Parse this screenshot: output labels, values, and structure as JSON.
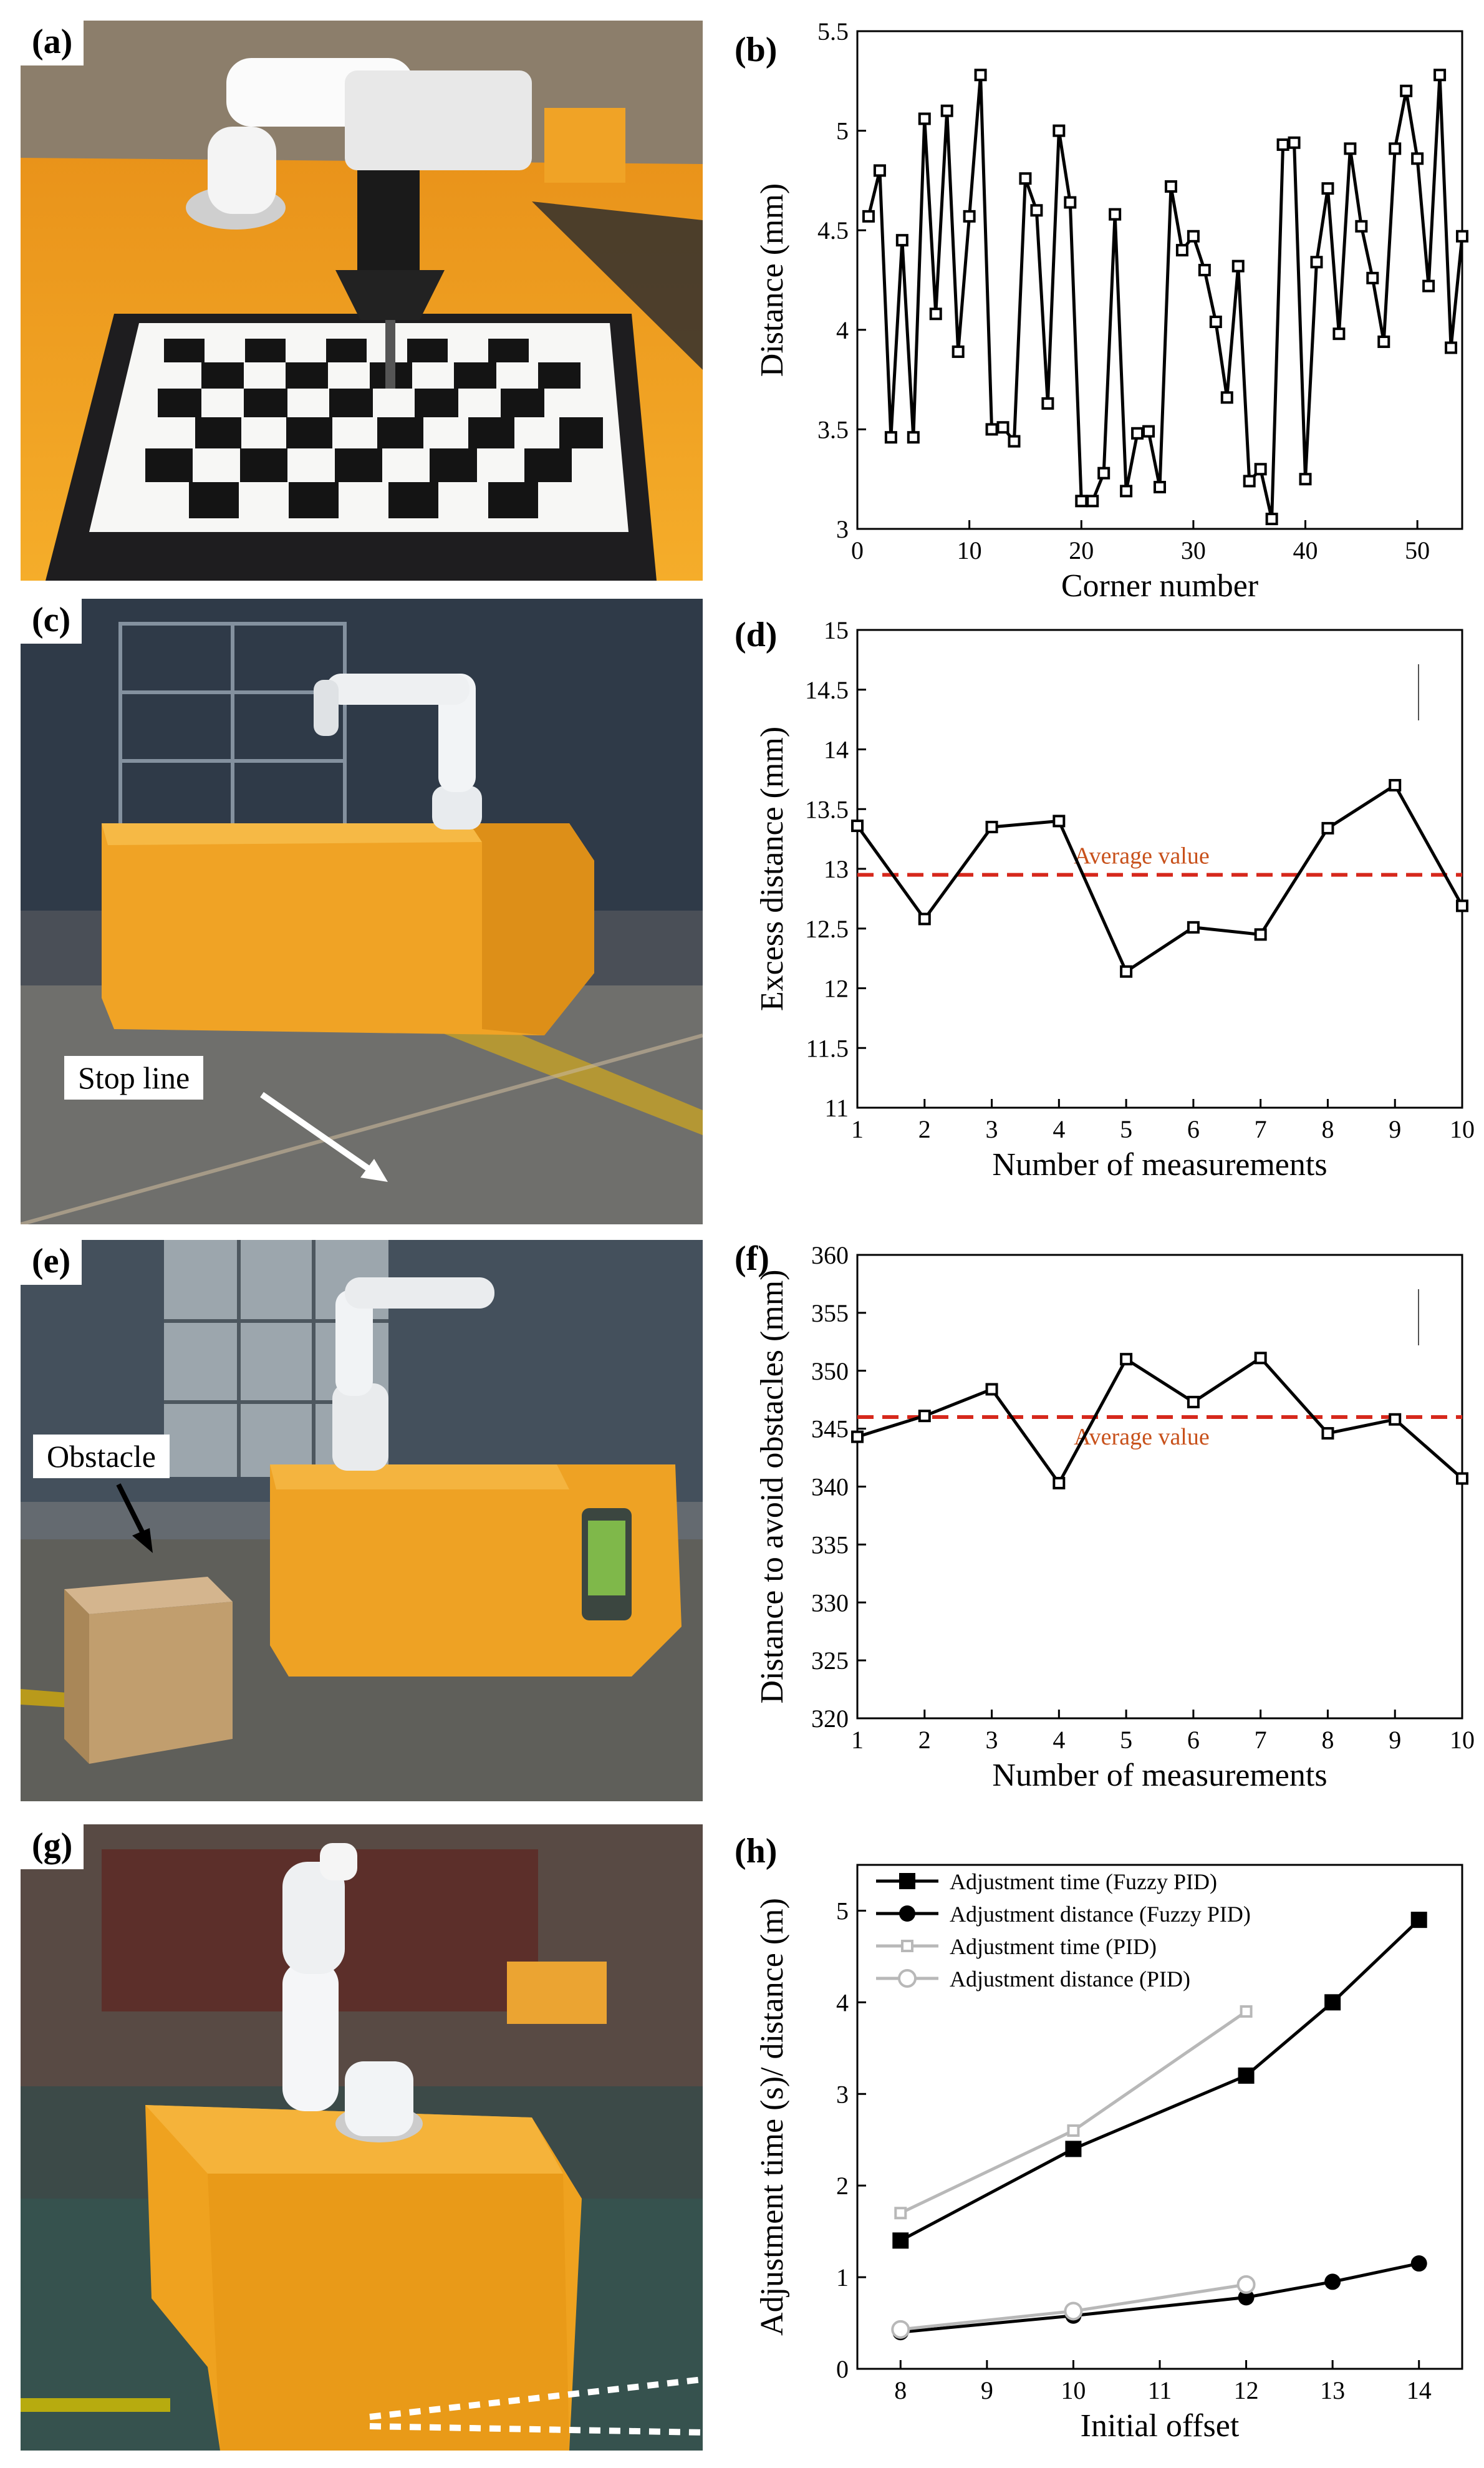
{
  "panels": {
    "a": {
      "label": "(a)"
    },
    "b": {
      "label": "(b)"
    },
    "c": {
      "label": "(c)",
      "callout": "Stop line"
    },
    "d": {
      "label": "(d)"
    },
    "e": {
      "label": "(e)",
      "callout": "Obstacle"
    },
    "f": {
      "label": "(f)"
    },
    "g": {
      "label": "(g)"
    },
    "h": {
      "label": "(h)"
    }
  },
  "colors": {
    "line": "#000000",
    "average": "#d6281c",
    "average_text": "#c8511b",
    "pid": "#b8b8b8",
    "orange_table": "#f2a21b"
  },
  "chart_data": [
    {
      "panel": "b",
      "type": "line",
      "xlabel": "Corner number",
      "ylabel": "Distance (mm)",
      "xlim": [
        0,
        54
      ],
      "ylim": [
        3,
        5.5
      ],
      "xticks": [
        0,
        10,
        20,
        30,
        40,
        50
      ],
      "yticks": [
        3,
        3.5,
        4,
        4.5,
        5,
        5.5
      ],
      "marker": "open-square",
      "x": [
        1,
        2,
        3,
        4,
        5,
        6,
        7,
        8,
        9,
        10,
        11,
        12,
        13,
        14,
        15,
        16,
        17,
        18,
        19,
        20,
        21,
        22,
        23,
        24,
        25,
        26,
        27,
        28,
        29,
        30,
        31,
        32,
        33,
        34,
        35,
        36,
        37,
        38,
        39,
        40,
        41,
        42,
        43,
        44,
        45,
        46,
        47,
        48,
        49,
        50,
        51,
        52,
        53,
        54
      ],
      "y": [
        4.57,
        4.8,
        3.46,
        4.45,
        3.46,
        5.06,
        4.08,
        5.1,
        3.89,
        4.57,
        5.28,
        3.5,
        3.51,
        3.44,
        4.76,
        4.6,
        3.63,
        5.0,
        4.64,
        3.14,
        3.14,
        3.28,
        4.58,
        3.19,
        3.48,
        3.49,
        3.21,
        4.72,
        4.4,
        4.47,
        4.3,
        4.04,
        3.66,
        4.32,
        3.24,
        3.3,
        3.05,
        4.93,
        4.94,
        3.25,
        4.34,
        4.71,
        3.98,
        4.91,
        4.52,
        4.26,
        3.94,
        4.91,
        5.2,
        4.86,
        4.22,
        5.28,
        3.91,
        4.47
      ]
    },
    {
      "panel": "d",
      "type": "line",
      "xlabel": "Number of measurements",
      "ylabel": "Excess distance (mm)",
      "xlim": [
        1,
        10
      ],
      "ylim": [
        11,
        15
      ],
      "xticks": [
        1,
        2,
        3,
        4,
        5,
        6,
        7,
        8,
        9,
        10
      ],
      "yticks": [
        11,
        11.5,
        12,
        12.5,
        13,
        13.5,
        14,
        14.5,
        15
      ],
      "marker": "open-square",
      "x": [
        1,
        2,
        3,
        4,
        5,
        6,
        7,
        8,
        9,
        10
      ],
      "y": [
        13.36,
        12.58,
        13.35,
        13.4,
        12.14,
        12.51,
        12.45,
        13.34,
        13.7,
        12.69
      ],
      "average": {
        "value": 12.95,
        "label": "Average value"
      }
    },
    {
      "panel": "f",
      "type": "line",
      "xlabel": "Number of measurements",
      "ylabel": "Distance to avoid obstacles (mm)",
      "xlim": [
        1,
        10
      ],
      "ylim": [
        320,
        360
      ],
      "xticks": [
        1,
        2,
        3,
        4,
        5,
        6,
        7,
        8,
        9,
        10
      ],
      "yticks": [
        320,
        325,
        330,
        335,
        340,
        345,
        350,
        355,
        360
      ],
      "marker": "open-square",
      "x": [
        1,
        2,
        3,
        4,
        5,
        6,
        7,
        8,
        9,
        10
      ],
      "y": [
        344.3,
        346.1,
        348.4,
        340.3,
        351.0,
        347.3,
        351.1,
        344.6,
        345.8,
        340.7
      ],
      "average": {
        "value": 346.0,
        "label": "Average value"
      }
    },
    {
      "panel": "h",
      "type": "line",
      "xlabel": "Initial offset",
      "ylabel": "Adjustment time (s)/ distance (m)",
      "xlim": [
        7.5,
        14.5
      ],
      "ylim": [
        0,
        5.5
      ],
      "xticks": [
        8,
        9,
        10,
        11,
        12,
        13,
        14
      ],
      "yticks": [
        0,
        1,
        2,
        3,
        4,
        5
      ],
      "legend_position": "top-left",
      "series": [
        {
          "name": "Adjustment time (Fuzzy PID)",
          "marker": "filled-square",
          "color": "#000000",
          "x": [
            8,
            10,
            12,
            13,
            14
          ],
          "y": [
            1.4,
            2.4,
            3.2,
            4.0,
            4.9
          ]
        },
        {
          "name": "Adjustment distance (Fuzzy PID)",
          "marker": "filled-circle",
          "color": "#000000",
          "x": [
            8,
            10,
            12,
            13,
            14
          ],
          "y": [
            0.4,
            0.58,
            0.78,
            0.95,
            1.15
          ]
        },
        {
          "name": "Adjustment time (PID)",
          "marker": "open-square",
          "color": "#b8b8b8",
          "x": [
            8,
            10,
            12
          ],
          "y": [
            1.7,
            2.6,
            3.9
          ]
        },
        {
          "name": "Adjustment distance (PID)",
          "marker": "open-circle",
          "color": "#b8b8b8",
          "x": [
            8,
            10,
            12
          ],
          "y": [
            0.43,
            0.63,
            0.92
          ]
        }
      ]
    }
  ]
}
